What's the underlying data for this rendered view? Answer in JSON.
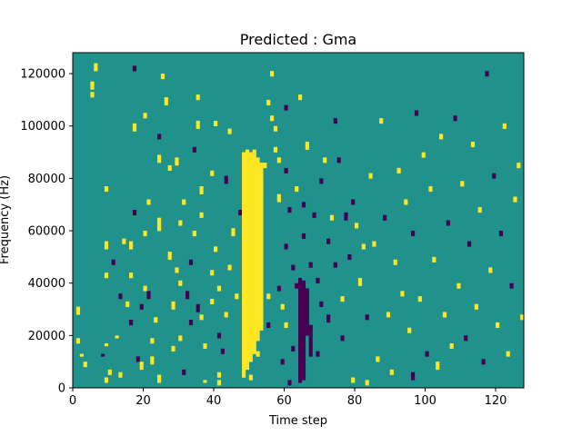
{
  "chart_data": {
    "type": "heatmap",
    "title": "Predicted : Gma",
    "xlabel": "Time step",
    "ylabel": "Frequency (Hz)",
    "xlim": [
      0,
      128
    ],
    "ylim": [
      0,
      128000
    ],
    "x_ticks": [
      0,
      20,
      40,
      60,
      80,
      100,
      120
    ],
    "y_ticks": [
      0,
      20000,
      40000,
      60000,
      80000,
      100000,
      120000
    ],
    "x_tick_labels": [
      "0",
      "20",
      "40",
      "60",
      "80",
      "100",
      "120"
    ],
    "y_tick_labels": [
      "0",
      "20000",
      "40000",
      "60000",
      "80000",
      "100000",
      "120000"
    ],
    "grid": false,
    "colormap": "viridis",
    "value_levels": [
      -1,
      0,
      1
    ],
    "level_colors": {
      "-1": "#440154",
      "0": "#21918c",
      "1": "#fde725"
    },
    "background_value": 0,
    "rows": 128,
    "row_height_hz": 1000,
    "cells": [
      [
        1,
        28,
        3,
        1
      ],
      [
        1,
        17,
        2,
        1
      ],
      [
        2,
        12,
        1,
        1
      ],
      [
        3,
        8,
        2,
        1
      ],
      [
        5,
        111,
        2,
        1
      ],
      [
        5,
        114,
        3,
        1
      ],
      [
        6,
        121,
        3,
        1
      ],
      [
        9,
        75,
        2,
        1
      ],
      [
        9,
        53,
        3,
        1
      ],
      [
        9,
        42,
        2,
        1
      ],
      [
        9,
        16,
        1,
        1
      ],
      [
        9,
        2,
        2,
        1
      ],
      [
        8,
        12,
        1,
        -1
      ],
      [
        10,
        5,
        2,
        1
      ],
      [
        11,
        47,
        2,
        -1
      ],
      [
        12,
        19,
        1,
        1
      ],
      [
        13,
        34,
        2,
        -1
      ],
      [
        13,
        4,
        2,
        1
      ],
      [
        14,
        55,
        2,
        1
      ],
      [
        15,
        31,
        2,
        1
      ],
      [
        16,
        53,
        3,
        1
      ],
      [
        16,
        42,
        2,
        1
      ],
      [
        16,
        24,
        2,
        -1
      ],
      [
        17,
        121,
        2,
        -1
      ],
      [
        17,
        98,
        3,
        1
      ],
      [
        17,
        66,
        2,
        -1
      ],
      [
        18,
        10,
        2,
        -1
      ],
      [
        19,
        30,
        2,
        -1
      ],
      [
        19,
        7,
        3,
        1
      ],
      [
        20,
        103,
        2,
        1
      ],
      [
        20,
        58,
        2,
        1
      ],
      [
        20,
        37,
        2,
        1
      ],
      [
        21,
        70,
        2,
        1
      ],
      [
        21,
        34,
        3,
        -1
      ],
      [
        22,
        17,
        2,
        1
      ],
      [
        22,
        9,
        3,
        1
      ],
      [
        23,
        25,
        2,
        1
      ],
      [
        24,
        95,
        2,
        -1
      ],
      [
        24,
        86,
        3,
        1
      ],
      [
        24,
        60,
        5,
        1
      ],
      [
        24,
        2,
        3,
        1
      ],
      [
        25,
        118,
        2,
        1
      ],
      [
        26,
        108,
        3,
        1
      ],
      [
        27,
        83,
        2,
        1
      ],
      [
        27,
        49,
        3,
        1
      ],
      [
        28,
        30,
        3,
        1
      ],
      [
        28,
        14,
        2,
        1
      ],
      [
        29,
        44,
        2,
        1
      ],
      [
        29,
        85,
        3,
        1
      ],
      [
        30,
        62,
        2,
        1
      ],
      [
        30,
        18,
        2,
        1
      ],
      [
        30,
        39,
        2,
        1
      ],
      [
        31,
        70,
        2,
        1
      ],
      [
        31,
        5,
        2,
        -1
      ],
      [
        32,
        34,
        3,
        -1
      ],
      [
        33,
        47,
        2,
        -1
      ],
      [
        33,
        24,
        2,
        -1
      ],
      [
        34,
        90,
        2,
        -1
      ],
      [
        34,
        58,
        2,
        1
      ],
      [
        35,
        99,
        3,
        1
      ],
      [
        35,
        110,
        2,
        1
      ],
      [
        35,
        29,
        3,
        -1
      ],
      [
        36,
        74,
        3,
        1
      ],
      [
        36,
        65,
        2,
        1
      ],
      [
        36,
        26,
        2,
        1
      ],
      [
        37,
        15,
        2,
        1
      ],
      [
        37,
        2,
        1,
        1
      ],
      [
        39,
        81,
        2,
        1
      ],
      [
        39,
        43,
        2,
        1
      ],
      [
        39,
        32,
        2,
        1
      ],
      [
        40,
        100,
        2,
        1
      ],
      [
        40,
        52,
        2,
        1
      ],
      [
        41,
        37,
        2,
        1
      ],
      [
        41,
        19,
        2,
        -1
      ],
      [
        41,
        4,
        2,
        1
      ],
      [
        41,
        1,
        2,
        1
      ],
      [
        42,
        13,
        2,
        -1
      ],
      [
        43,
        78,
        3,
        -1
      ],
      [
        43,
        27,
        2,
        1
      ],
      [
        44,
        45,
        2,
        1
      ],
      [
        44,
        97,
        2,
        1
      ],
      [
        45,
        58,
        3,
        1
      ],
      [
        46,
        34,
        2,
        1
      ],
      [
        47,
        66,
        2,
        -1
      ],
      [
        48,
        17,
        2,
        -1
      ],
      [
        49,
        35,
        3,
        1
      ],
      [
        49,
        58,
        3,
        1
      ],
      [
        50,
        64,
        2,
        1
      ],
      [
        50,
        52,
        1,
        -1
      ],
      [
        50,
        3,
        2,
        1
      ],
      [
        51,
        89,
        2,
        1
      ],
      [
        52,
        12,
        2,
        1
      ],
      [
        53,
        75,
        2,
        1
      ],
      [
        53,
        45,
        3,
        -1
      ],
      [
        54,
        84,
        2,
        1
      ],
      [
        55,
        108,
        2,
        1
      ],
      [
        55,
        34,
        2,
        1
      ],
      [
        55,
        23,
        2,
        -1
      ],
      [
        56,
        102,
        2,
        1
      ],
      [
        56,
        119,
        2,
        1
      ],
      [
        57,
        98,
        2,
        1
      ],
      [
        57,
        90,
        2,
        1
      ],
      [
        58,
        86,
        2,
        1
      ],
      [
        58,
        71,
        3,
        1
      ],
      [
        58,
        37,
        2,
        -1
      ],
      [
        59,
        30,
        2,
        1
      ],
      [
        59,
        9,
        2,
        -1
      ],
      [
        60,
        106,
        2,
        -1
      ],
      [
        60,
        82,
        2,
        -1
      ],
      [
        60,
        53,
        2,
        -1
      ],
      [
        60,
        23,
        2,
        1
      ],
      [
        61,
        67,
        2,
        -1
      ],
      [
        61,
        1,
        2,
        -1
      ],
      [
        62,
        45,
        2,
        -1
      ],
      [
        62,
        14,
        2,
        -1
      ],
      [
        63,
        75,
        2,
        1
      ],
      [
        63,
        38,
        2,
        -1
      ],
      [
        64,
        110,
        2,
        1
      ],
      [
        64,
        5,
        2,
        -1
      ],
      [
        65,
        69,
        2,
        -1
      ],
      [
        65,
        30,
        3,
        -1
      ],
      [
        65,
        57,
        2,
        -1
      ],
      [
        66,
        91,
        3,
        1
      ],
      [
        67,
        46,
        2,
        -1
      ],
      [
        67,
        22,
        2,
        -1
      ],
      [
        68,
        65,
        2,
        -1
      ],
      [
        69,
        40,
        2,
        -1
      ],
      [
        69,
        12,
        2,
        -1
      ],
      [
        70,
        78,
        2,
        -1
      ],
      [
        70,
        31,
        2,
        -1
      ],
      [
        71,
        86,
        2,
        1
      ],
      [
        72,
        55,
        2,
        -1
      ],
      [
        72,
        25,
        3,
        -1
      ],
      [
        73,
        64,
        2,
        1
      ],
      [
        74,
        101,
        2,
        -1
      ],
      [
        74,
        46,
        2,
        -1
      ],
      [
        75,
        86,
        2,
        -1
      ],
      [
        76,
        33,
        2,
        1
      ],
      [
        76,
        18,
        2,
        -1
      ],
      [
        77,
        64,
        3,
        -1
      ],
      [
        78,
        49,
        2,
        -1
      ],
      [
        79,
        70,
        2,
        -1
      ],
      [
        79,
        2,
        2,
        1
      ],
      [
        80,
        61,
        2,
        1
      ],
      [
        81,
        39,
        3,
        1
      ],
      [
        82,
        53,
        2,
        1
      ],
      [
        83,
        26,
        2,
        -1
      ],
      [
        83,
        1,
        2,
        1
      ],
      [
        84,
        80,
        2,
        1
      ],
      [
        85,
        54,
        2,
        1
      ],
      [
        86,
        10,
        2,
        1
      ],
      [
        87,
        101,
        2,
        1
      ],
      [
        88,
        64,
        2,
        -1
      ],
      [
        89,
        27,
        2,
        1
      ],
      [
        90,
        5,
        2,
        1
      ],
      [
        91,
        47,
        2,
        1
      ],
      [
        92,
        82,
        2,
        1
      ],
      [
        93,
        35,
        2,
        1
      ],
      [
        94,
        70,
        2,
        1
      ],
      [
        95,
        21,
        2,
        1
      ],
      [
        96,
        58,
        2,
        -1
      ],
      [
        96,
        3,
        3,
        -1
      ],
      [
        97,
        104,
        2,
        -1
      ],
      [
        98,
        33,
        2,
        1
      ],
      [
        99,
        88,
        2,
        1
      ],
      [
        100,
        12,
        2,
        -1
      ],
      [
        101,
        75,
        2,
        1
      ],
      [
        102,
        48,
        2,
        1
      ],
      [
        103,
        7,
        3,
        1
      ],
      [
        104,
        95,
        2,
        1
      ],
      [
        105,
        27,
        2,
        1
      ],
      [
        106,
        62,
        2,
        -1
      ],
      [
        107,
        15,
        2,
        1
      ],
      [
        108,
        102,
        2,
        -1
      ],
      [
        109,
        38,
        2,
        1
      ],
      [
        110,
        77,
        2,
        1
      ],
      [
        111,
        18,
        2,
        -1
      ],
      [
        112,
        54,
        2,
        -1
      ],
      [
        113,
        92,
        2,
        1
      ],
      [
        114,
        30,
        2,
        1
      ],
      [
        115,
        67,
        2,
        1
      ],
      [
        116,
        9,
        2,
        -1
      ],
      [
        117,
        119,
        2,
        -1
      ],
      [
        118,
        44,
        2,
        1
      ],
      [
        119,
        80,
        2,
        -1
      ],
      [
        120,
        23,
        2,
        1
      ],
      [
        121,
        58,
        2,
        -1
      ],
      [
        122,
        99,
        2,
        1
      ],
      [
        123,
        12,
        2,
        1
      ],
      [
        124,
        38,
        2,
        -1
      ],
      [
        125,
        71,
        2,
        1
      ],
      [
        126,
        84,
        2,
        1
      ],
      [
        127,
        26,
        2,
        1
      ]
    ]
  }
}
